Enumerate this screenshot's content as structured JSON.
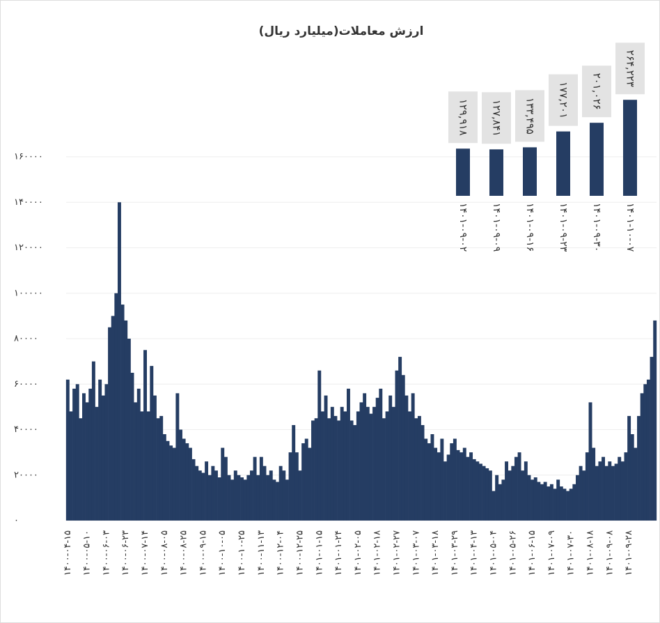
{
  "chart_data": [
    {
      "type": "bar",
      "title": "ارزش معاملات(میلیارد ریال)",
      "color": "#253d63",
      "grid": true,
      "ylim": [
        0,
        160000
      ],
      "yticks": [
        {
          "value": 0,
          "label": "۰"
        },
        {
          "value": 20000,
          "label": "۲۰۰۰۰"
        },
        {
          "value": 40000,
          "label": "۴۰۰۰۰"
        },
        {
          "value": 60000,
          "label": "۶۰۰۰۰"
        },
        {
          "value": 80000,
          "label": "۸۰۰۰۰"
        },
        {
          "value": 100000,
          "label": "۱۰۰۰۰۰"
        },
        {
          "value": 120000,
          "label": "۱۲۰۰۰۰"
        },
        {
          "value": 140000,
          "label": "۱۴۰۰۰۰"
        },
        {
          "value": 160000,
          "label": "۱۶۰۰۰۰"
        }
      ],
      "categories": [
        "۱۴۰۰-۰۴-۱۵",
        null,
        null,
        null,
        null,
        null,
        "۱۴۰۰-۰۵-۱۰",
        null,
        null,
        null,
        null,
        null,
        "۱۴۰۰-۰۶-۰۳",
        null,
        null,
        null,
        null,
        null,
        "۱۴۰۰-۰۶-۲۳",
        null,
        null,
        null,
        null,
        null,
        "۱۴۰۰-۰۷-۱۴",
        null,
        null,
        null,
        null,
        null,
        "۱۴۰۰-۰۸-۰۵",
        null,
        null,
        null,
        null,
        null,
        "۱۴۰۰-۰۸-۲۵",
        null,
        null,
        null,
        null,
        null,
        "۱۴۰۰-۰۹-۱۵",
        null,
        null,
        null,
        null,
        null,
        "۱۴۰۰-۱۰-۰۵",
        null,
        null,
        null,
        null,
        null,
        "۱۴۰۰-۱۰-۲۵",
        null,
        null,
        null,
        null,
        null,
        "۱۴۰۰-۱۱-۱۳",
        null,
        null,
        null,
        null,
        null,
        "۱۴۰۰-۱۲-۰۴",
        null,
        null,
        null,
        null,
        null,
        "۱۴۰۰-۱۲-۲۵",
        null,
        null,
        null,
        null,
        null,
        "۱۴۰۱-۰۱-۱۵",
        null,
        null,
        null,
        null,
        null,
        "۱۴۰۱-۰۱-۲۴",
        null,
        null,
        null,
        null,
        null,
        "۱۴۰۱-۰۲-۰۵",
        null,
        null,
        null,
        null,
        null,
        "۱۴۰۱-۰۲-۱۸",
        null,
        null,
        null,
        null,
        null,
        "۱۴۰۱-۰۲-۲۷",
        null,
        null,
        null,
        null,
        null,
        "۱۴۰۱-۰۳-۰۷",
        null,
        null,
        null,
        null,
        null,
        "۱۴۰۱-۰۳-۱۸",
        null,
        null,
        null,
        null,
        null,
        "۱۴۰۱-۰۳-۲۹",
        null,
        null,
        null,
        null,
        null,
        "۱۴۰۱-۰۴-۱۳",
        null,
        null,
        null,
        null,
        null,
        "۱۴۰۱-۰۵-۰۴",
        null,
        null,
        null,
        null,
        null,
        "۱۴۰۱-۰۵-۲۶",
        null,
        null,
        null,
        null,
        null,
        "۱۴۰۱-۰۶-۱۵",
        null,
        null,
        null,
        null,
        null,
        "۱۴۰۱-۰۷-۰۹",
        null,
        null,
        null,
        null,
        null,
        "۱۴۰۱-۰۷-۳۰",
        null,
        null,
        null,
        null,
        null,
        "۱۴۰۱-۰۸-۱۸",
        null,
        null,
        null,
        null,
        null,
        "۱۴۰۱-۰۹-۰۸",
        null,
        null,
        null,
        null,
        null,
        "۱۴۰۱-۰۹-۲۸",
        null,
        null,
        null,
        null,
        null,
        null,
        null,
        null
      ],
      "values": [
        62000,
        48000,
        58000,
        60000,
        45000,
        56000,
        52000,
        58000,
        70000,
        50000,
        62000,
        55000,
        60000,
        85000,
        90000,
        100000,
        140000,
        95000,
        88000,
        80000,
        65000,
        52000,
        58000,
        48000,
        75000,
        48000,
        68000,
        55000,
        45000,
        46000,
        38000,
        35000,
        33000,
        32000,
        56000,
        40000,
        36000,
        34000,
        32000,
        27000,
        24000,
        22000,
        21000,
        26000,
        20000,
        24000,
        22000,
        19000,
        32000,
        28000,
        20000,
        18000,
        22000,
        20000,
        19000,
        18000,
        20000,
        22000,
        28000,
        20000,
        28000,
        24000,
        20000,
        22000,
        18000,
        17000,
        24000,
        22000,
        18000,
        30000,
        42000,
        30000,
        22000,
        34000,
        36000,
        32000,
        44000,
        45000,
        66000,
        48000,
        55000,
        45000,
        50000,
        46000,
        44000,
        50000,
        48000,
        58000,
        44000,
        42000,
        48000,
        52000,
        56000,
        50000,
        47000,
        50000,
        54000,
        58000,
        45000,
        48000,
        55000,
        50000,
        66000,
        72000,
        64000,
        55000,
        48000,
        56000,
        45000,
        46000,
        42000,
        36000,
        34000,
        38000,
        32000,
        30000,
        36000,
        26000,
        29000,
        34000,
        36000,
        31000,
        30000,
        32000,
        28000,
        30000,
        27000,
        26000,
        25000,
        24000,
        23000,
        22000,
        13000,
        20000,
        16000,
        18000,
        26000,
        22000,
        24000,
        28000,
        30000,
        22000,
        26000,
        20000,
        18000,
        19000,
        17000,
        16000,
        17000,
        15000,
        16000,
        14000,
        18000,
        15000,
        14000,
        13000,
        14000,
        16000,
        20000,
        24000,
        22000,
        30000,
        52000,
        32000,
        24000,
        26000,
        28000,
        24000,
        26000,
        24000,
        25000,
        28000,
        26000,
        30000,
        46000,
        38000,
        32000,
        46000,
        56000,
        60000,
        62000,
        72000,
        88000
      ]
    },
    {
      "type": "bar",
      "color": "#253d63",
      "ylim": [
        0,
        280000
      ],
      "categories": [
        "۱۴۰۱-۰۹-۰۲",
        "۱۴۰۱-۰۹-۰۹",
        "۱۴۰۱-۰۹-۱۶",
        "۱۴۰۱-۰۹-۲۳",
        "۱۴۰۱-۰۹-۳۰",
        "۱۴۰۱-۱۰-۰۷"
      ],
      "values": [
        129918,
        127841,
        133495,
        177201,
        201026,
        264223
      ],
      "value_labels": [
        "۱۲۹,۹۱۸",
        "۱۲۷,۸۴۱",
        "۱۳۳,۴۹۵",
        "۱۷۷,۲۰۱",
        "۲۰۱,۰۲۶",
        "۲۶۴,۲۲۳"
      ]
    }
  ]
}
